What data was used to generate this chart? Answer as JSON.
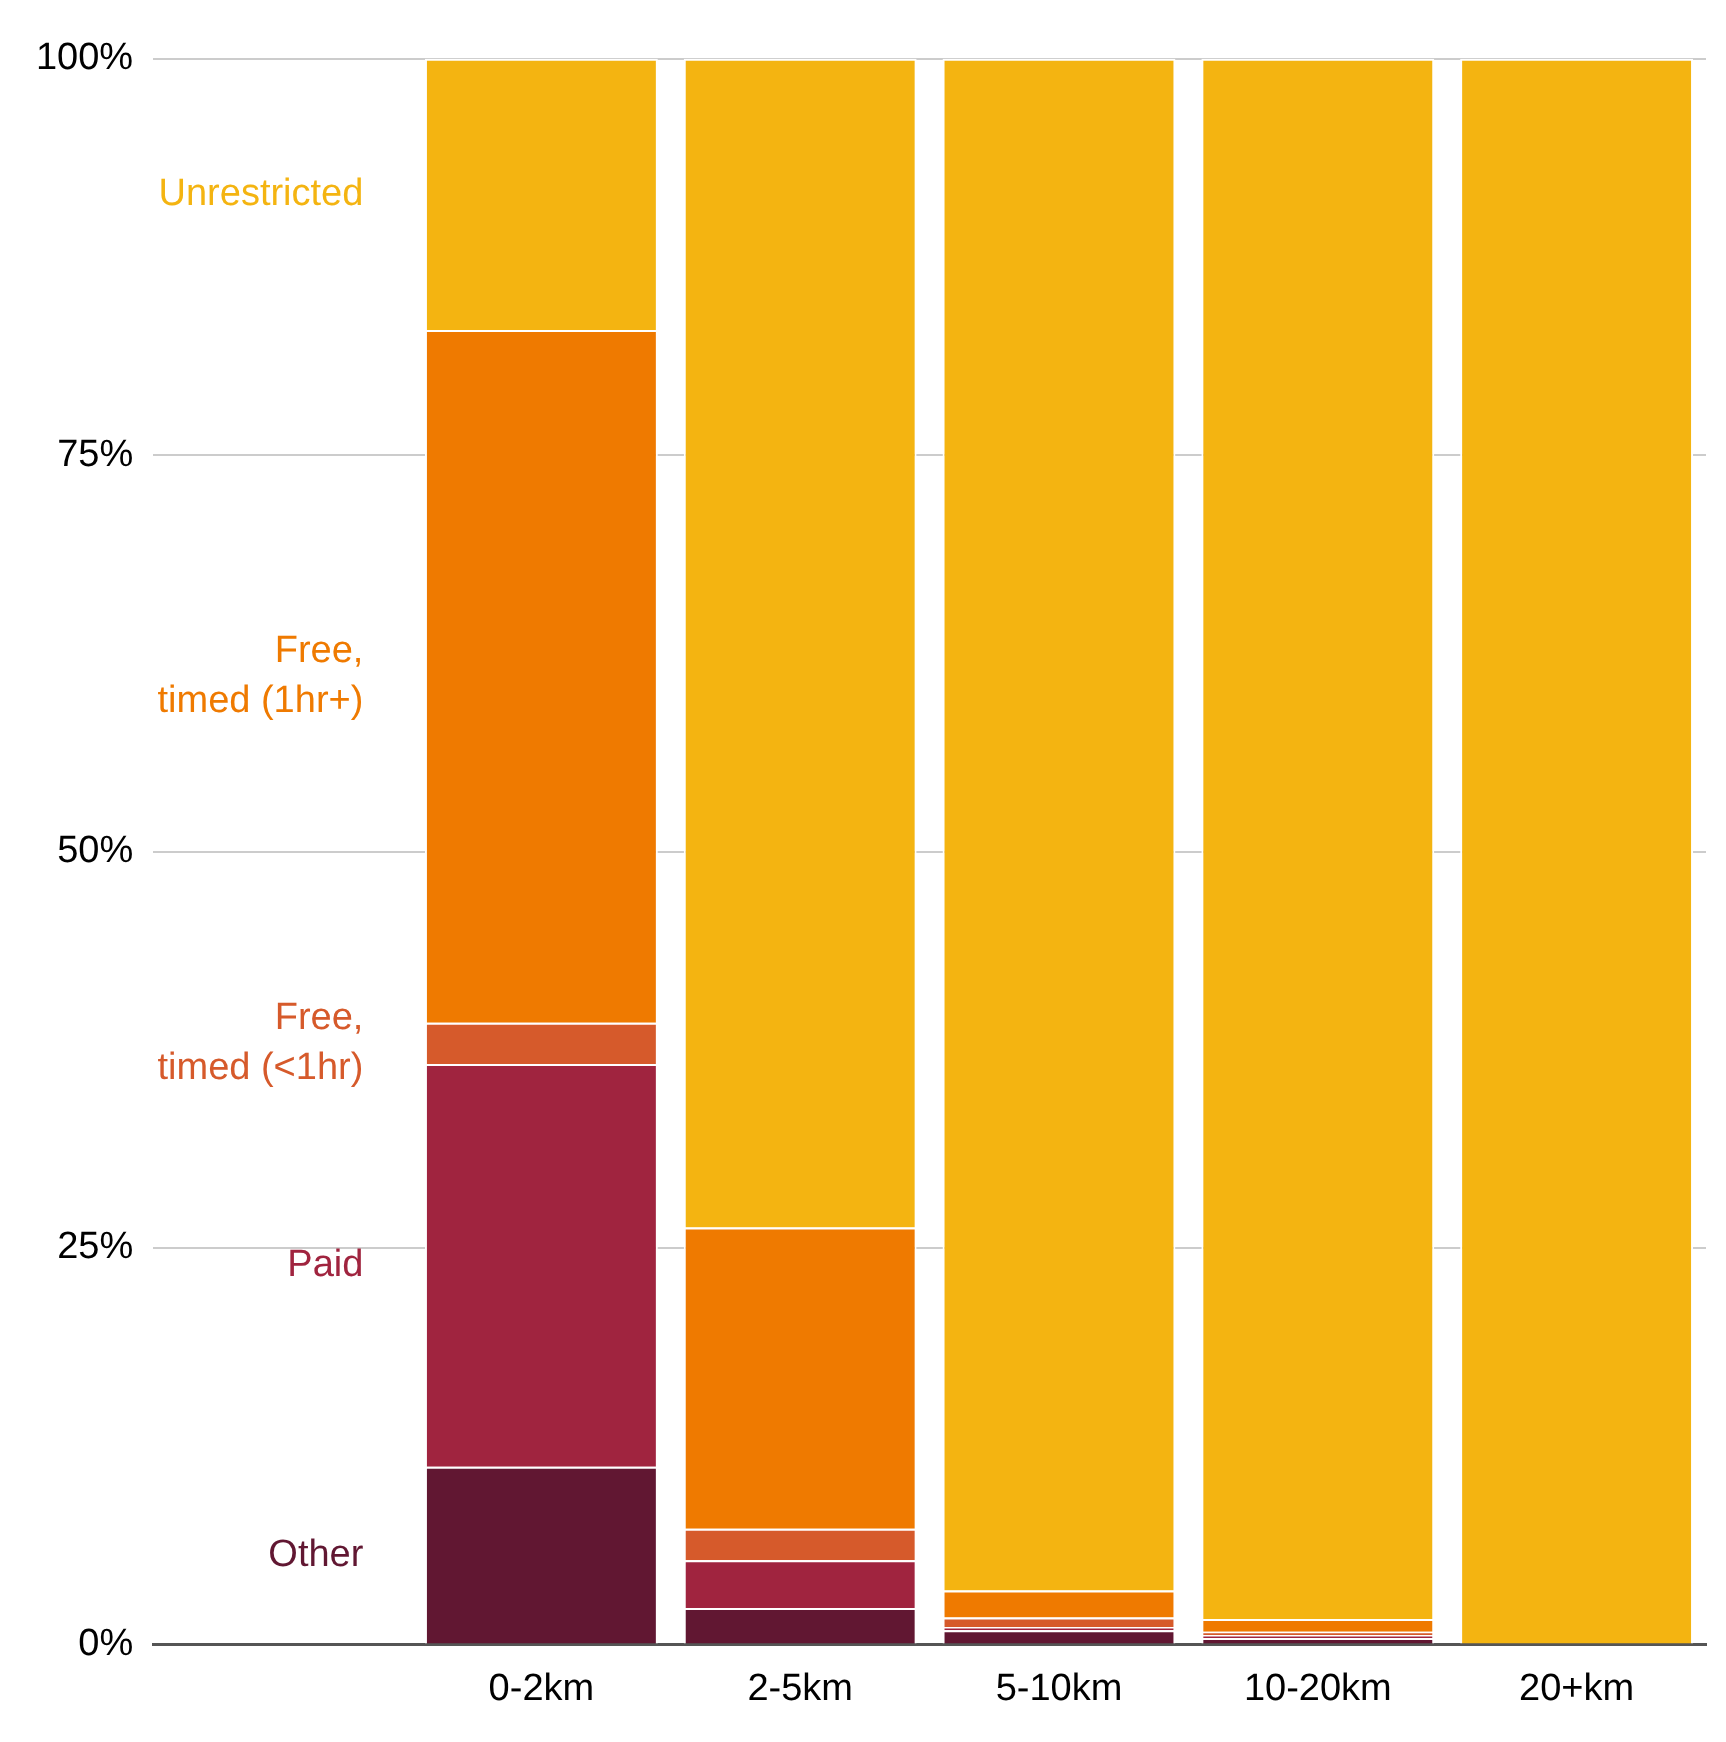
{
  "chart_data": {
    "type": "bar",
    "stacked": true,
    "relative": false,
    "categories": [
      null,
      "0-2km",
      "2-5km",
      "5-10km",
      "10-20km",
      "20+km"
    ],
    "series": [
      {
        "name": "Other",
        "color": "#611732",
        "values": [
          null,
          11.2,
          2.3,
          0.9,
          0.4,
          0
        ]
      },
      {
        "name": "Paid",
        "color": "#a0243f",
        "values": [
          null,
          25.4,
          3.0,
          0.2,
          0.2,
          0
        ]
      },
      {
        "name": "Free, timed (<1hr)",
        "color": "#d65a2b",
        "values": [
          null,
          2.6,
          2.0,
          0.6,
          0.2,
          0
        ]
      },
      {
        "name": "Free, timed (1hr+)",
        "color": "#ef7a00",
        "values": [
          null,
          43.7,
          19.0,
          1.7,
          0.8,
          0
        ]
      },
      {
        "name": "Unrestricted",
        "color": "#f4b411",
        "values": [
          null,
          17.1,
          73.7,
          96.6,
          98.4,
          100
        ]
      }
    ],
    "ylim": [
      0,
      100
    ],
    "yticks": [
      {
        "value": 0,
        "label": "0%"
      },
      {
        "value": 25,
        "label": "25%"
      },
      {
        "value": 50,
        "label": "50%"
      },
      {
        "value": 75,
        "label": "75%"
      },
      {
        "value": 100,
        "label": "100%"
      }
    ],
    "grid": "y",
    "legend": false
  }
}
